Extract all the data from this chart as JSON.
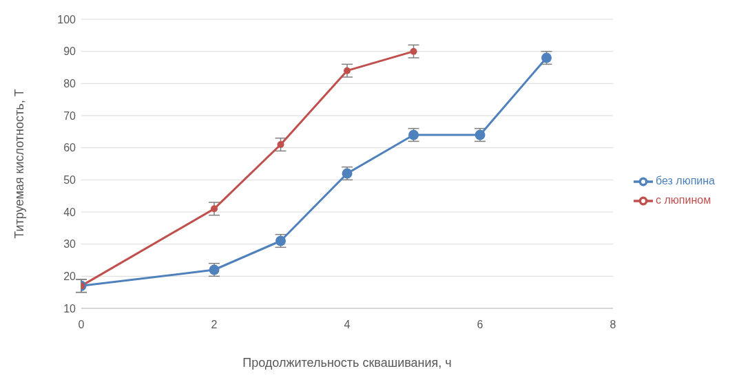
{
  "chart_data": {
    "type": "line",
    "xlabel": "Продолжительность сквашивания, ч",
    "ylabel": "Титруемая кислотность, Т",
    "xlim": [
      0,
      8
    ],
    "xticks": [
      0,
      2,
      4,
      6,
      8
    ],
    "ylim": [
      10,
      100
    ],
    "yticks": [
      10,
      20,
      30,
      40,
      50,
      60,
      70,
      80,
      90,
      100
    ],
    "grid": "y",
    "legend": "right",
    "marker": "circle",
    "line_style": "solid",
    "series": [
      {
        "name": "без люпина",
        "color": "#4f81bd",
        "x": [
          0,
          2,
          3,
          4,
          5,
          6,
          7
        ],
        "values": [
          17,
          22,
          31,
          52,
          64,
          64,
          88
        ],
        "errors": [
          2,
          2,
          2,
          2,
          2,
          2,
          2
        ]
      },
      {
        "name": "с люпином",
        "color": "#c0504d",
        "x": [
          0,
          2,
          3,
          4,
          5
        ],
        "values": [
          17,
          41,
          61,
          84,
          90
        ],
        "errors": [
          2,
          2,
          2,
          2,
          2
        ]
      }
    ]
  }
}
